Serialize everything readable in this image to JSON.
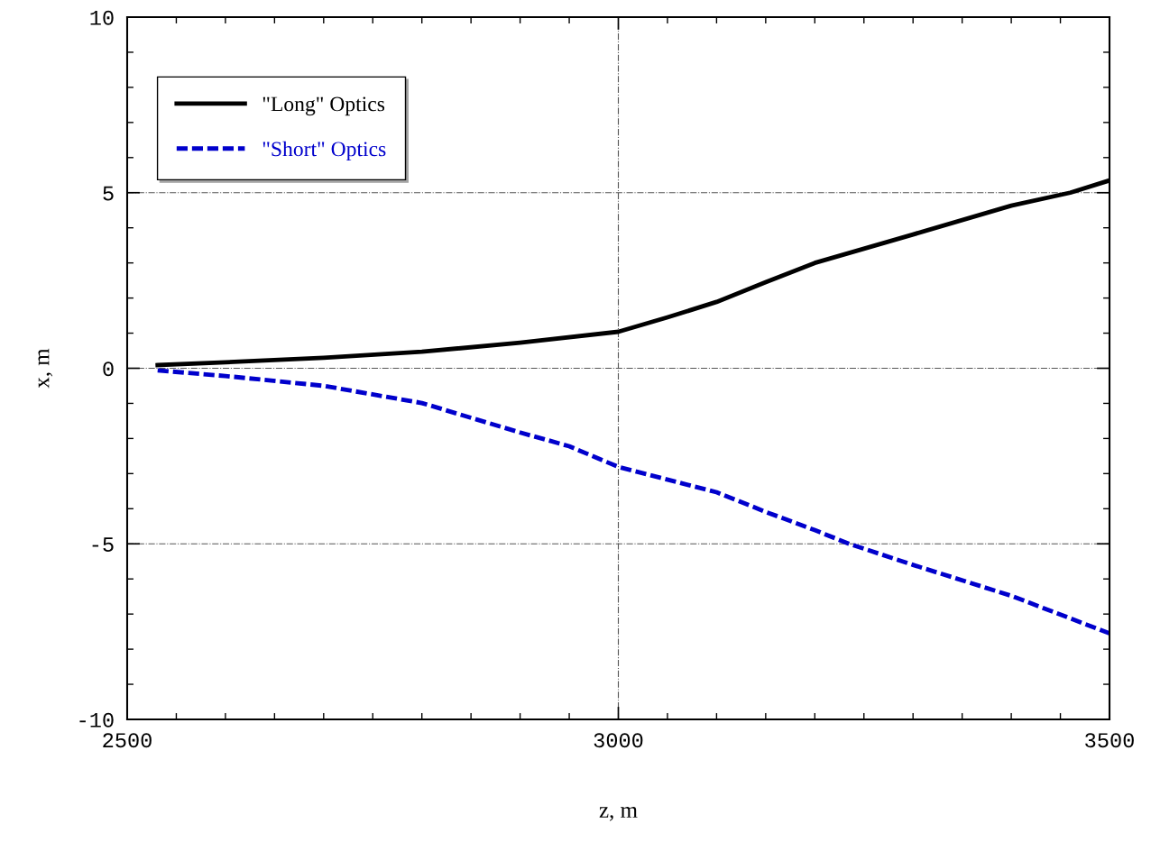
{
  "chart_data": {
    "type": "line",
    "xlabel": "z, m",
    "ylabel": "x, m",
    "xlim": [
      2500,
      3500
    ],
    "xticks": [
      2500,
      3000,
      3500
    ],
    "ylim": [
      -10,
      10
    ],
    "yticks": [
      -10,
      -5,
      0,
      5,
      10
    ],
    "grid": true,
    "legend": "top left",
    "series": [
      {
        "name": "\"Long\" Optics",
        "color": "#000000",
        "line_style": "solid",
        "x": [
          2531,
          2600,
          2700,
          2800,
          2900,
          3000,
          3050,
          3100,
          3150,
          3200,
          3300,
          3400,
          3460,
          3500
        ],
        "values": [
          0.09,
          0.17,
          0.3,
          0.47,
          0.73,
          1.04,
          1.45,
          1.89,
          2.45,
          3.0,
          3.81,
          4.63,
          5.0,
          5.35
        ]
      },
      {
        "name": "\"Short\" Optics",
        "color": "#0000cc",
        "line_style": "dashed",
        "x": [
          2531,
          2600,
          2700,
          2800,
          2900,
          2950,
          3000,
          3100,
          3150,
          3200,
          3235,
          3300,
          3400,
          3500
        ],
        "values": [
          -0.06,
          -0.22,
          -0.5,
          -0.99,
          -1.83,
          -2.22,
          -2.81,
          -3.53,
          -4.09,
          -4.61,
          -5.0,
          -5.6,
          -6.48,
          -7.55
        ]
      }
    ]
  }
}
